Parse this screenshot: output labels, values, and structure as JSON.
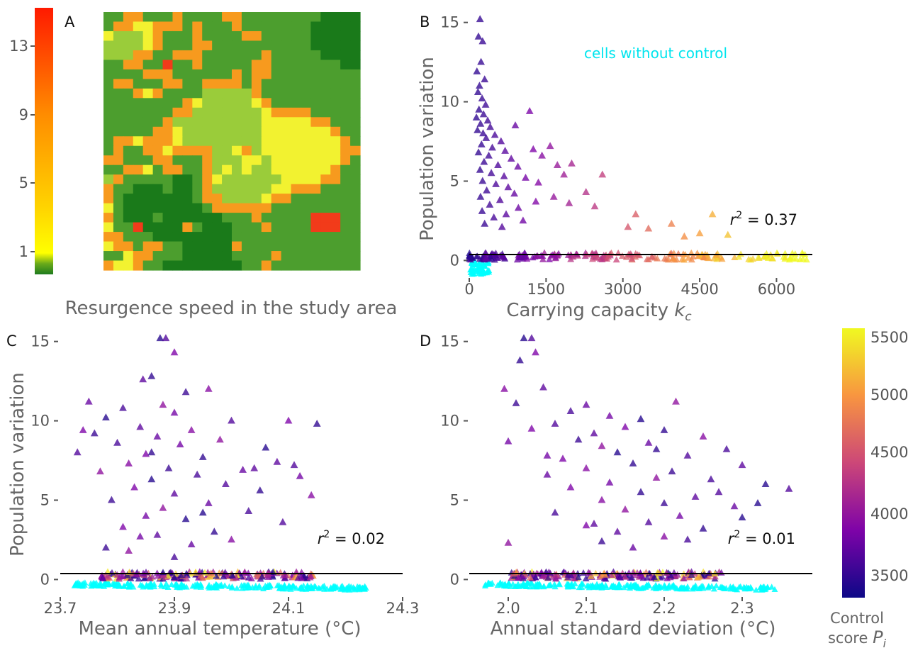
{
  "panel_letters": {
    "a": "A",
    "b": "B",
    "c": "C",
    "d": "D"
  },
  "colorbar_left": {
    "ticks": [
      "13",
      "9",
      "5",
      "1"
    ],
    "colors": [
      "#ff1a00",
      "#ff8c00",
      "#ffd400",
      "#ffff00",
      "#1e7b1e"
    ]
  },
  "heatmap": {
    "caption": "Resurgence speed in the study area",
    "palette": {
      "dark_green": "#1a7a1a",
      "green": "#4c9e2e",
      "light_green": "#9acc3a",
      "yellow": "#f2f230",
      "orange": "#f79a1e",
      "red": "#f23b1a"
    }
  },
  "colorbar_right": {
    "ticks": [
      "5500",
      "5000",
      "4500",
      "4000",
      "3500"
    ],
    "title_line1": "Control",
    "title_line2": "score",
    "title_symbol": "P",
    "title_subscript": "i",
    "colors": [
      "#0d0887",
      "#7e03a8",
      "#cc4778",
      "#f89540",
      "#f0f921"
    ]
  },
  "no_control_color": "#00ffff",
  "chart_data": [
    {
      "panel": "B",
      "type": "scatter",
      "xlabel": "Carrying capacity",
      "xlabel_symbol": "k",
      "xlabel_subscript": "c",
      "ylabel": "Population variation",
      "annotation": "cells without control",
      "r2": "0.37",
      "xlim": [
        0,
        6700
      ],
      "ylim": [
        -1.1,
        15.7
      ],
      "xticks": [
        "0",
        "1500",
        "3000",
        "4500",
        "6000"
      ],
      "yticks": [
        "0",
        "5",
        "10",
        "15"
      ],
      "points": [
        [
          210,
          15.2
        ],
        [
          180,
          14.1
        ],
        [
          260,
          13.8
        ],
        [
          230,
          12.5
        ],
        [
          150,
          11.9
        ],
        [
          300,
          11.4
        ],
        [
          200,
          11.0
        ],
        [
          170,
          10.6
        ],
        [
          250,
          10.2
        ],
        [
          320,
          9.8
        ],
        [
          190,
          9.5
        ],
        [
          280,
          9.2
        ],
        [
          140,
          9.0
        ],
        [
          360,
          8.8
        ],
        [
          220,
          8.6
        ],
        [
          410,
          8.4
        ],
        [
          160,
          8.2
        ],
        [
          270,
          8.0
        ],
        [
          500,
          7.9
        ],
        [
          330,
          7.7
        ],
        [
          620,
          7.5
        ],
        [
          240,
          7.3
        ],
        [
          450,
          7.1
        ],
        [
          700,
          6.9
        ],
        [
          180,
          6.8
        ],
        [
          380,
          6.6
        ],
        [
          820,
          6.4
        ],
        [
          290,
          6.2
        ],
        [
          560,
          6.0
        ],
        [
          950,
          5.9
        ],
        [
          210,
          5.7
        ],
        [
          430,
          5.5
        ],
        [
          680,
          5.3
        ],
        [
          1100,
          5.2
        ],
        [
          260,
          5.0
        ],
        [
          520,
          4.8
        ],
        [
          760,
          4.6
        ],
        [
          340,
          4.4
        ],
        [
          880,
          4.2
        ],
        [
          220,
          4.0
        ],
        [
          600,
          3.8
        ],
        [
          1300,
          3.7
        ],
        [
          400,
          3.5
        ],
        [
          960,
          3.3
        ],
        [
          250,
          3.1
        ],
        [
          720,
          2.9
        ],
        [
          480,
          2.7
        ],
        [
          1050,
          2.5
        ],
        [
          300,
          2.3
        ],
        [
          640,
          2.1
        ],
        [
          1180,
          9.4
        ],
        [
          1420,
          6.6
        ],
        [
          1580,
          7.2
        ],
        [
          1720,
          6.0
        ],
        [
          1850,
          5.4
        ],
        [
          2000,
          6.1
        ],
        [
          2280,
          4.3
        ],
        [
          2600,
          5.4
        ],
        [
          3100,
          2.1
        ],
        [
          3500,
          2.0
        ],
        [
          3950,
          2.3
        ],
        [
          4500,
          1.7
        ],
        [
          4750,
          2.9
        ],
        [
          1350,
          4.9
        ],
        [
          1950,
          3.6
        ],
        [
          2450,
          3.4
        ],
        [
          1650,
          4.0
        ],
        [
          900,
          8.5
        ],
        [
          1250,
          7.0
        ],
        [
          3250,
          2.9
        ],
        [
          4200,
          1.5
        ],
        [
          5050,
          1.6
        ]
      ]
    },
    {
      "panel": "C",
      "type": "scatter",
      "xlabel": "Mean annual temperature (°C)",
      "ylabel": "Population variation",
      "r2": "0.02",
      "xlim": [
        23.7,
        24.3
      ],
      "ylim": [
        -1.1,
        15.7
      ],
      "xticks": [
        "23.7",
        "23.9",
        "24.1",
        "24.3"
      ],
      "yticks": [
        "0",
        "5",
        "10",
        "15"
      ],
      "points": [
        [
          23.875,
          15.2
        ],
        [
          23.885,
          15.2
        ],
        [
          23.9,
          14.3
        ],
        [
          23.86,
          12.8
        ],
        [
          23.845,
          12.6
        ],
        [
          23.96,
          12.0
        ],
        [
          23.92,
          11.8
        ],
        [
          23.75,
          11.2
        ],
        [
          23.88,
          11.0
        ],
        [
          23.81,
          10.8
        ],
        [
          23.9,
          10.5
        ],
        [
          23.78,
          10.2
        ],
        [
          24.0,
          10.0
        ],
        [
          24.1,
          10.0
        ],
        [
          24.15,
          9.8
        ],
        [
          23.84,
          9.6
        ],
        [
          23.93,
          9.4
        ],
        [
          23.76,
          9.2
        ],
        [
          23.87,
          9.0
        ],
        [
          23.98,
          8.8
        ],
        [
          23.8,
          8.6
        ],
        [
          23.91,
          8.5
        ],
        [
          24.06,
          8.3
        ],
        [
          23.73,
          8.0
        ],
        [
          23.85,
          7.9
        ],
        [
          23.95,
          7.7
        ],
        [
          24.08,
          7.4
        ],
        [
          23.82,
          7.3
        ],
        [
          23.89,
          7.0
        ],
        [
          24.02,
          6.9
        ],
        [
          23.77,
          6.8
        ],
        [
          23.94,
          6.6
        ],
        [
          24.12,
          6.5
        ],
        [
          23.86,
          6.3
        ],
        [
          23.99,
          6.0
        ],
        [
          23.83,
          5.8
        ],
        [
          24.05,
          5.6
        ],
        [
          23.9,
          5.4
        ],
        [
          24.14,
          5.3
        ],
        [
          23.79,
          5.0
        ],
        [
          23.96,
          4.8
        ],
        [
          23.88,
          4.5
        ],
        [
          24.03,
          4.3
        ],
        [
          23.85,
          4.0
        ],
        [
          23.92,
          3.8
        ],
        [
          24.09,
          3.6
        ],
        [
          23.81,
          3.3
        ],
        [
          23.97,
          3.0
        ],
        [
          23.87,
          2.8
        ],
        [
          24.0,
          2.5
        ],
        [
          23.78,
          2.0
        ],
        [
          23.93,
          2.2
        ],
        [
          23.82,
          1.8
        ],
        [
          23.9,
          1.4
        ],
        [
          23.84,
          2.7
        ],
        [
          23.95,
          4.2
        ],
        [
          24.11,
          7.2
        ],
        [
          23.74,
          9.4
        ],
        [
          23.86,
          8.0
        ],
        [
          24.04,
          7.0
        ]
      ]
    },
    {
      "panel": "D",
      "type": "scatter",
      "xlabel": "Annual standard deviation (°C)",
      "ylabel": "Population variation",
      "r2": "0.01",
      "xlim": [
        1.95,
        2.39
      ],
      "ylim": [
        -1.1,
        15.7
      ],
      "xticks": [
        "2.0",
        "2.1",
        "2.2",
        "2.3"
      ],
      "yticks": [
        "0",
        "5",
        "10",
        "15"
      ],
      "points": [
        [
          2.02,
          15.2
        ],
        [
          2.03,
          15.2
        ],
        [
          2.035,
          14.3
        ],
        [
          2.015,
          13.8
        ],
        [
          2.045,
          12.1
        ],
        [
          1.995,
          12.0
        ],
        [
          2.01,
          11.1
        ],
        [
          2.1,
          11.0
        ],
        [
          2.215,
          11.2
        ],
        [
          2.08,
          10.6
        ],
        [
          2.13,
          10.3
        ],
        [
          2.17,
          10.1
        ],
        [
          2.06,
          9.8
        ],
        [
          2.15,
          9.6
        ],
        [
          2.2,
          9.4
        ],
        [
          2.11,
          9.2
        ],
        [
          2.25,
          9.0
        ],
        [
          2.09,
          8.8
        ],
        [
          2.18,
          8.6
        ],
        [
          2.12,
          8.4
        ],
        [
          2.28,
          8.2
        ],
        [
          2.0,
          8.7
        ],
        [
          2.14,
          8.0
        ],
        [
          2.23,
          7.8
        ],
        [
          2.07,
          7.6
        ],
        [
          2.16,
          7.3
        ],
        [
          2.3,
          7.2
        ],
        [
          2.1,
          7.0
        ],
        [
          2.21,
          6.8
        ],
        [
          2.05,
          6.6
        ],
        [
          2.19,
          6.4
        ],
        [
          2.26,
          6.3
        ],
        [
          2.13,
          6.1
        ],
        [
          2.33,
          6.0
        ],
        [
          2.36,
          5.7
        ],
        [
          2.08,
          5.8
        ],
        [
          2.17,
          5.5
        ],
        [
          2.24,
          5.2
        ],
        [
          2.12,
          5.0
        ],
        [
          2.2,
          4.8
        ],
        [
          2.29,
          4.6
        ],
        [
          2.15,
          4.4
        ],
        [
          2.06,
          4.2
        ],
        [
          2.22,
          4.0
        ],
        [
          2.3,
          3.9
        ],
        [
          2.18,
          3.6
        ],
        [
          2.1,
          3.4
        ],
        [
          2.25,
          3.2
        ],
        [
          2.14,
          3.0
        ],
        [
          2.2,
          2.7
        ],
        [
          2.12,
          2.4
        ],
        [
          2.16,
          2.0
        ],
        [
          2.0,
          2.3
        ],
        [
          2.23,
          2.5
        ],
        [
          2.05,
          7.8
        ],
        [
          2.32,
          4.8
        ],
        [
          2.27,
          5.5
        ],
        [
          2.03,
          9.5
        ],
        [
          2.19,
          8.2
        ],
        [
          2.11,
          3.5
        ]
      ]
    }
  ]
}
